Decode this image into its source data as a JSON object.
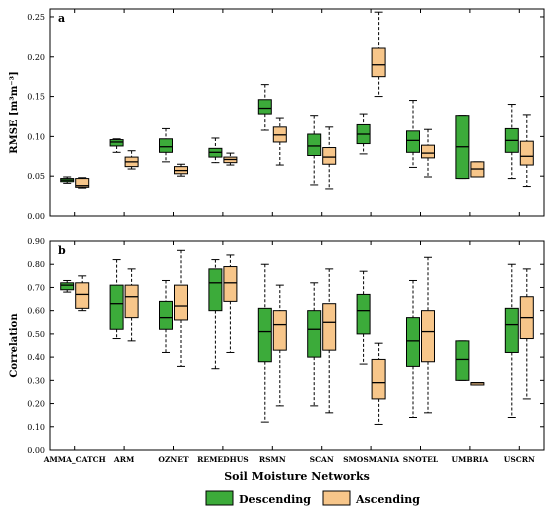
{
  "colors": {
    "descending": "#3cab3a",
    "ascending": "#f7c68a",
    "stroke": "#000000"
  },
  "xlabel": "Soil Moisture Networks",
  "legend": {
    "position": "bottom-center",
    "items": [
      {
        "label": "Descending",
        "color": "#3cab3a"
      },
      {
        "label": "Ascending",
        "color": "#f7c68a"
      }
    ]
  },
  "chart_data": [
    {
      "type": "box",
      "panel": "a",
      "ylabel": "RMSE [m³m⁻³]",
      "ylim": [
        0,
        0.26
      ],
      "yticks": [
        "0.00",
        "0.05",
        "0.10",
        "0.15",
        "0.20",
        "0.25"
      ],
      "categories": [
        "AMMA_CATCH",
        "ARM",
        "OZNET",
        "REMEDHUS",
        "RSMN",
        "SCAN",
        "SMOSMANIA",
        "SNOTEL",
        "UMBRIA",
        "USCRN"
      ],
      "series": [
        {
          "name": "Descending",
          "boxes": [
            {
              "min": 0.041,
              "q1": 0.043,
              "median": 0.045,
              "q3": 0.047,
              "max": 0.049
            },
            {
              "min": 0.08,
              "q1": 0.088,
              "median": 0.093,
              "q3": 0.096,
              "max": 0.097
            },
            {
              "min": 0.068,
              "q1": 0.08,
              "median": 0.087,
              "q3": 0.097,
              "max": 0.11
            },
            {
              "min": 0.067,
              "q1": 0.074,
              "median": 0.08,
              "q3": 0.085,
              "max": 0.098
            },
            {
              "min": 0.108,
              "q1": 0.128,
              "median": 0.135,
              "q3": 0.146,
              "max": 0.165
            },
            {
              "min": 0.039,
              "q1": 0.076,
              "median": 0.088,
              "q3": 0.103,
              "max": 0.126
            },
            {
              "min": 0.078,
              "q1": 0.091,
              "median": 0.103,
              "q3": 0.115,
              "max": 0.128
            },
            {
              "min": 0.061,
              "q1": 0.08,
              "median": 0.095,
              "q3": 0.107,
              "max": 0.145
            },
            {
              "min": 0.047,
              "q1": 0.047,
              "median": 0.087,
              "q3": 0.126,
              "max": 0.126
            },
            {
              "min": 0.047,
              "q1": 0.08,
              "median": 0.095,
              "q3": 0.11,
              "max": 0.14
            }
          ]
        },
        {
          "name": "Ascending",
          "boxes": [
            {
              "min": 0.035,
              "q1": 0.036,
              "median": 0.038,
              "q3": 0.047,
              "max": 0.048
            },
            {
              "min": 0.059,
              "q1": 0.062,
              "median": 0.068,
              "q3": 0.074,
              "max": 0.082
            },
            {
              "min": 0.05,
              "q1": 0.053,
              "median": 0.057,
              "q3": 0.062,
              "max": 0.065
            },
            {
              "min": 0.064,
              "q1": 0.067,
              "median": 0.071,
              "q3": 0.074,
              "max": 0.079
            },
            {
              "min": 0.064,
              "q1": 0.093,
              "median": 0.102,
              "q3": 0.112,
              "max": 0.123
            },
            {
              "min": 0.034,
              "q1": 0.065,
              "median": 0.074,
              "q3": 0.086,
              "max": 0.112
            },
            {
              "min": 0.15,
              "q1": 0.175,
              "median": 0.19,
              "q3": 0.211,
              "max": 0.256
            },
            {
              "min": 0.049,
              "q1": 0.073,
              "median": 0.079,
              "q3": 0.089,
              "max": 0.109
            },
            {
              "min": 0.049,
              "q1": 0.049,
              "median": 0.059,
              "q3": 0.068,
              "max": 0.068
            },
            {
              "min": 0.037,
              "q1": 0.064,
              "median": 0.075,
              "q3": 0.094,
              "max": 0.127
            }
          ]
        }
      ]
    },
    {
      "type": "box",
      "panel": "b",
      "ylabel": "Correlation",
      "ylim": [
        0,
        0.9
      ],
      "yticks": [
        "0.00",
        "0.10",
        "0.20",
        "0.30",
        "0.40",
        "0.50",
        "0.60",
        "0.70",
        "0.80",
        "0.90"
      ],
      "categories": [
        "AMMA_CATCH",
        "ARM",
        "OZNET",
        "REMEDHUS",
        "RSMN",
        "SCAN",
        "SMOSMANIA",
        "SNOTEL",
        "UMBRIA",
        "USCRN"
      ],
      "series": [
        {
          "name": "Descending",
          "boxes": [
            {
              "min": 0.68,
              "q1": 0.69,
              "median": 0.71,
              "q3": 0.72,
              "max": 0.73
            },
            {
              "min": 0.48,
              "q1": 0.52,
              "median": 0.63,
              "q3": 0.71,
              "max": 0.82
            },
            {
              "min": 0.42,
              "q1": 0.52,
              "median": 0.57,
              "q3": 0.64,
              "max": 0.73
            },
            {
              "min": 0.35,
              "q1": 0.6,
              "median": 0.72,
              "q3": 0.78,
              "max": 0.82
            },
            {
              "min": 0.12,
              "q1": 0.38,
              "median": 0.51,
              "q3": 0.61,
              "max": 0.8
            },
            {
              "min": 0.19,
              "q1": 0.4,
              "median": 0.52,
              "q3": 0.6,
              "max": 0.72
            },
            {
              "min": 0.37,
              "q1": 0.5,
              "median": 0.6,
              "q3": 0.67,
              "max": 0.77
            },
            {
              "min": 0.14,
              "q1": 0.36,
              "median": 0.47,
              "q3": 0.57,
              "max": 0.73
            },
            {
              "min": 0.3,
              "q1": 0.3,
              "median": 0.39,
              "q3": 0.47,
              "max": 0.47
            },
            {
              "min": 0.14,
              "q1": 0.42,
              "median": 0.54,
              "q3": 0.61,
              "max": 0.8
            }
          ]
        },
        {
          "name": "Ascending",
          "boxes": [
            {
              "min": 0.6,
              "q1": 0.61,
              "median": 0.67,
              "q3": 0.72,
              "max": 0.75
            },
            {
              "min": 0.47,
              "q1": 0.57,
              "median": 0.66,
              "q3": 0.71,
              "max": 0.78
            },
            {
              "min": 0.36,
              "q1": 0.56,
              "median": 0.62,
              "q3": 0.71,
              "max": 0.86
            },
            {
              "min": 0.42,
              "q1": 0.64,
              "median": 0.72,
              "q3": 0.79,
              "max": 0.84
            },
            {
              "min": 0.19,
              "q1": 0.43,
              "median": 0.54,
              "q3": 0.6,
              "max": 0.71
            },
            {
              "min": 0.16,
              "q1": 0.43,
              "median": 0.55,
              "q3": 0.63,
              "max": 0.78
            },
            {
              "min": 0.11,
              "q1": 0.22,
              "median": 0.29,
              "q3": 0.39,
              "max": 0.46
            },
            {
              "min": 0.16,
              "q1": 0.38,
              "median": 0.51,
              "q3": 0.6,
              "max": 0.83
            },
            {
              "min": 0.28,
              "q1": 0.28,
              "median": 0.29,
              "q3": 0.29,
              "max": 0.29
            },
            {
              "min": 0.22,
              "q1": 0.48,
              "median": 0.57,
              "q3": 0.66,
              "max": 0.78
            }
          ]
        }
      ]
    }
  ]
}
